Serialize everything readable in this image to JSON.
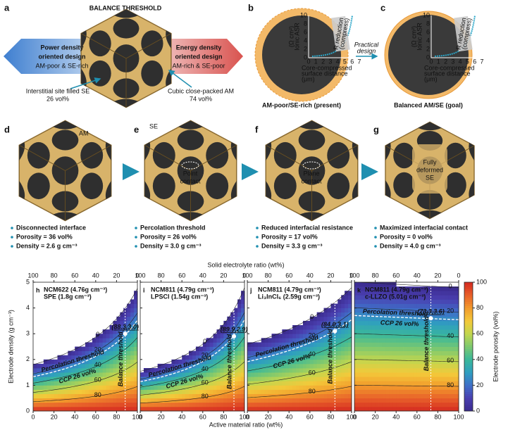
{
  "figure": {
    "a": {
      "letter": "a",
      "title": "BALANCE THRESHOLD",
      "left_title": [
        "Power density",
        "oriented design"
      ],
      "left_sub": "AM-poor & SE-rich",
      "right_title": [
        "Energy density",
        "oriented design"
      ],
      "right_sub": "AM-rich & SE-poor",
      "left_note": [
        "Interstitial site filled SE",
        "26 vol%"
      ],
      "right_note": [
        "Cubic close-packed AM",
        "74 vol%"
      ]
    },
    "b": {
      "letter": "b",
      "caption": "AM-poor/SE-rich (present)",
      "ylabel": [
        "Ionic ASR",
        "(Ω cm²)"
      ],
      "xlabel": [
        "Core-compressed",
        "surface distance",
        "(μm)"
      ],
      "curve_label": [
        "R reduction",
        "(compress)"
      ],
      "yticks": [
        0,
        2,
        4,
        6,
        8,
        10
      ],
      "xticks": [
        0,
        1,
        2,
        3,
        4,
        5,
        6,
        7
      ],
      "arrow_label": [
        "Practical",
        "design"
      ]
    },
    "c": {
      "letter": "c",
      "caption": "Balanced AM/SE (goal)",
      "ylabel": [
        "Ionic ASR",
        "(Ω cm²)"
      ],
      "xlabel": [
        "Core-compressed",
        "surface distance",
        "(μm)"
      ],
      "curve_label": [
        "R reduction",
        "(compress)"
      ],
      "yticks": [
        0,
        2,
        4,
        6,
        8,
        10
      ],
      "xticks": [
        0,
        1,
        2,
        3,
        4,
        5,
        6,
        7
      ]
    },
    "d": {
      "letter": "d",
      "tag": "AM",
      "bullets": [
        "Disconnected interface",
        "Porosity = 36 vol%",
        "Density = 2.6 g cm⁻³"
      ]
    },
    "e": {
      "letter": "e",
      "tag": "SE",
      "inner": [
        "Point",
        "contact"
      ],
      "bullets": [
        "Percolation threshold",
        "Porosity = 26 vol%",
        "Density = 3.0 g cm⁻³"
      ]
    },
    "f": {
      "letter": "f",
      "inner": [
        "Plane",
        "contact"
      ],
      "bullets": [
        "Reduced interfacial resistance",
        "Porosity = 17 vol%",
        "Density = 3.3 g cm⁻³"
      ]
    },
    "g": {
      "letter": "g",
      "inner": [
        "Fully",
        "deformed",
        "SE"
      ],
      "bullets": [
        "Maximized interfacial contact",
        "Porosity = 0 vol%",
        "Density = 4.0 g cm⁻³"
      ]
    }
  },
  "chart_data": {
    "type": "contour",
    "xlabel": "Active material ratio (wt%)",
    "top_xlabel": "Solid electrolyte ratio (wt%)",
    "ylabel": "Electrode density (g cm⁻³)",
    "colorbar_label": "Electrode porosity (vol%)",
    "xlim": [
      0,
      100
    ],
    "xticks": [
      0,
      20,
      40,
      60,
      80,
      100
    ],
    "top_xlim": [
      100,
      0
    ],
    "top_xticks": [
      100,
      80,
      60,
      40,
      20,
      0
    ],
    "ylim": [
      0,
      5
    ],
    "yticks": [
      0,
      1,
      2,
      3,
      4,
      5
    ],
    "clim": [
      0,
      100
    ],
    "colorbar_ticks": [
      0,
      20,
      40,
      60,
      80,
      100
    ],
    "contour_levels": [
      0,
      20,
      40,
      60,
      80
    ],
    "percolation_level": 26,
    "percolation_label": "Percolation threshold",
    "ccp_label": "CCP 26 vol%",
    "balance_label": "Balance threshold",
    "panels": [
      {
        "letter": "h",
        "am_label": "NCM622 (4.76g cm⁻³)",
        "se_label": "SPE (1.8g cm⁻³)",
        "am_density": 4.76,
        "se_density": 1.8,
        "point": {
          "x": 88.3,
          "y": 3.0,
          "label": "(88.3,3.0)"
        }
      },
      {
        "letter": "i",
        "am_label": "NCM811 (4.79g cm⁻³)",
        "se_label": "LPSCl (1.54g cm⁻³)",
        "am_density": 4.79,
        "se_density": 1.54,
        "point": {
          "x": 89.9,
          "y": 2.9,
          "label": "(89.9,2.9)"
        }
      },
      {
        "letter": "j",
        "am_label": "NCM811 (4.79g cm⁻³)",
        "se_label": "Li₃InCl₆ (2.59g cm⁻³)",
        "am_density": 4.79,
        "se_density": 2.59,
        "point": {
          "x": 84.0,
          "y": 3.1,
          "label": "(84.0,3.1)"
        }
      },
      {
        "letter": "k",
        "am_label": "NCM811 (4.79g cm⁻³)",
        "se_label": "c-LLZO (5.01g cm⁻³)",
        "am_density": 4.79,
        "se_density": 5.01,
        "point": {
          "x": 73.3,
          "y": 3.6,
          "label": "(73.3,3.6)"
        }
      }
    ]
  }
}
